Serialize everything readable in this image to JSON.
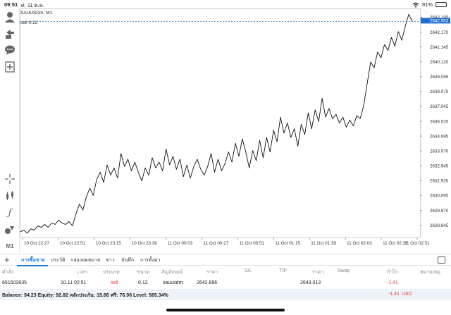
{
  "status_bar": {
    "time": "09:51",
    "date": "ศ. 11 ต.ค.",
    "battery": "91%",
    "battery_level": 0.91
  },
  "chart": {
    "symbol_label": "XAUUSDm, M1",
    "order_label": "sell 0.12",
    "current_price": "2642.953",
    "accent_color": "#1f6fd1",
    "order_line_color": "#4a8fc6"
  },
  "chart_data": {
    "type": "line",
    "ylim": [
      2628.0,
      2643.7
    ],
    "y_ticks": [
      "2643.195",
      "2642.170",
      "2641.145",
      "2640.120",
      "2639.095",
      "2638.070",
      "2637.045",
      "2636.020",
      "2634.995",
      "2633.970",
      "2632.945",
      "2631.920",
      "2630.895",
      "2629.870",
      "2628.845"
    ],
    "x_ticks": [
      "10 Oct 22:27",
      "10 Oct 22:51",
      "10 Oct 23:15",
      "10 Oct 23:39",
      "11 Oct 00:03",
      "11 Oct 00:27",
      "11 Oct 00:51",
      "11 Oct 01:15",
      "11 Oct 01:39",
      "11 Oct 02:03",
      "11 Oct 02:27",
      "11 Oct 02:51"
    ],
    "order_price": 2642.896,
    "values": [
      2628.4,
      2628.5,
      2628.3,
      2628.6,
      2628.5,
      2628.8,
      2628.7,
      2628.9,
      2628.7,
      2629.0,
      2628.9,
      2629.2,
      2629.0,
      2628.9,
      2629.1,
      2628.8,
      2629.6,
      2630.3,
      2629.9,
      2630.8,
      2631.4,
      2630.9,
      2632.0,
      2632.5,
      2631.8,
      2633.0,
      2632.3,
      2632.8,
      2632.1,
      2633.8,
      2632.9,
      2633.4,
      2632.6,
      2633.2,
      2632.5,
      2631.9,
      2632.8,
      2632.3,
      2633.5,
      2632.8,
      2633.2,
      2632.6,
      2634.1,
      2633.0,
      2633.6,
      2632.7,
      2633.4,
      2632.2,
      2633.0,
      2632.1,
      2632.9,
      2633.4,
      2632.7,
      2632.3,
      2632.9,
      2633.8,
      2632.5,
      2633.4,
      2632.6,
      2633.1,
      2633.9,
      2633.2,
      2634.5,
      2633.6,
      2634.8,
      2633.9,
      2632.8,
      2634.0,
      2633.3,
      2634.7,
      2633.5,
      2634.9,
      2633.9,
      2635.4,
      2634.6,
      2636.3,
      2635.2,
      2635.9,
      2634.9,
      2635.5,
      2634.3,
      2635.8,
      2635.1,
      2636.6,
      2635.5,
      2636.8,
      2636.0,
      2637.6,
      2636.3,
      2636.9,
      2636.2,
      2636.5,
      2635.9,
      2636.3,
      2635.6,
      2636.1,
      2635.7,
      2636.4,
      2636.2,
      2637.1,
      2638.6,
      2640.1,
      2639.7,
      2640.8,
      2640.4,
      2641.3,
      2640.9,
      2641.8,
      2641.2,
      2642.2,
      2641.6,
      2642.6,
      2643.4,
      2642.9
    ]
  },
  "tabs": {
    "add": "+",
    "items": [
      "การซื้อขาย",
      "ประวัติ",
      "กล่องจดหมาย",
      "ข่าว",
      "บันทึก",
      "การตั้งค่า"
    ]
  },
  "table": {
    "headers": [
      "คำสั่ง",
      "เวลา",
      "ประเภท",
      "ขนาด",
      "สัญลักษณ์",
      "ราคา",
      "S/L",
      "T/P",
      "ราคา",
      "Swap",
      "กำไร",
      "หมายเหตุ"
    ],
    "row": [
      "651503935",
      "10.11 02:51",
      "sell",
      "0.12",
      "xauusdm",
      "2642.896",
      "",
      "",
      "2643.013",
      "",
      "-1.41",
      ""
    ]
  },
  "balance": {
    "text": "Balance: 94.23 Equity: 92.82 หลักประกัน: 15.86 ฟรี: 76.96 Level: 585.34%",
    "profit": "-1.41",
    "currency": "USD"
  }
}
